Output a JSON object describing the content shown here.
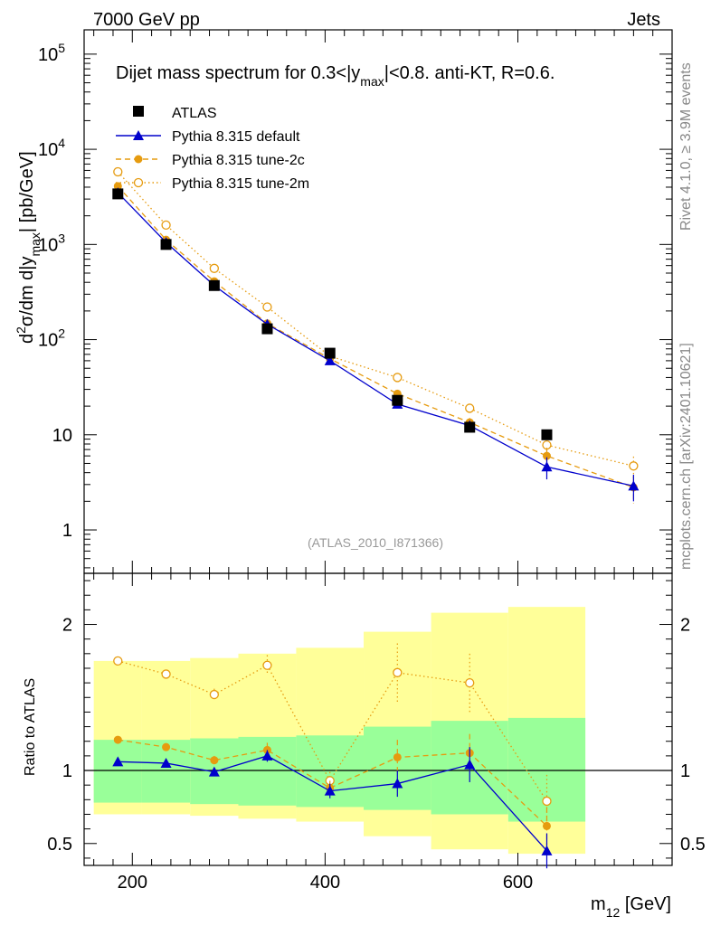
{
  "header": {
    "left": "7000 GeV pp",
    "right": "Jets"
  },
  "side_texts": {
    "rivet": "Rivet 4.1.0, ≥ 3.9M events",
    "mcplots": "mcplots.cern.ch [arXiv:2401.10621]"
  },
  "colors": {
    "atlas": "#000000",
    "default": "#0000cc",
    "tune2c": "#e69b0f",
    "tune2m": "#e69b0f",
    "band_inner": "#99ff99",
    "band_outer": "#ffff99"
  },
  "chart_data": [
    {
      "type": "scatter",
      "title": "Dijet mass spectrum for 0.3<|y_max|<0.8.  anti-KT, R=0.6.",
      "title_parts": {
        "main": "Dijet mass spectrum for 0.3<|y",
        "sub": "max",
        "rest": "|<0.8.  anti-KT, R=0.6."
      },
      "ylabel_parts": {
        "d": "d",
        "sup": "2",
        "mid": "σ/dm d|y",
        "sub": "max",
        "rest": "| [pb/GeV]"
      },
      "yscale": "log",
      "xlim": [
        150,
        760
      ],
      "ylim": [
        0.35,
        180000
      ],
      "ytick_labels": [
        "1",
        "10",
        "10",
        "10",
        "10",
        "10"
      ],
      "ytick_exponents": [
        "",
        "",
        "2",
        "3",
        "4",
        "5"
      ],
      "watermark": "(ATLAS_2010_I871366)",
      "legend_position": "top-left",
      "series": [
        {
          "name": "ATLAS",
          "marker": "square",
          "x": [
            185,
            235,
            285,
            340,
            405,
            475,
            550,
            630
          ],
          "y": [
            3400,
            1000,
            370,
            130,
            72,
            23,
            12,
            10
          ]
        },
        {
          "name": "Pythia 8.315 default",
          "marker": "triangle",
          "line": "solid",
          "x": [
            185,
            235,
            285,
            340,
            405,
            475,
            550,
            630,
            720
          ],
          "y": [
            3500,
            1050,
            370,
            145,
            60,
            21,
            12.5,
            4.6,
            2.9
          ],
          "err": [
            0,
            0,
            0,
            0,
            0,
            2,
            1,
            1.2,
            0.9
          ]
        },
        {
          "name": "Pythia 8.315 tune-2c",
          "marker": "circle",
          "line": "dashed",
          "x": [
            185,
            235,
            285,
            340,
            405,
            475,
            550,
            630,
            720
          ],
          "y": [
            4100,
            1120,
            410,
            148,
            63,
            27,
            13.5,
            6,
            2.8
          ],
          "err": [
            0,
            0,
            0,
            0,
            0,
            2.5,
            1.5,
            1.3,
            0.9
          ]
        },
        {
          "name": "Pythia 8.315 tune-2m",
          "marker": "open-circle",
          "line": "dotted",
          "x": [
            185,
            235,
            285,
            340,
            405,
            475,
            550,
            630,
            720
          ],
          "y": [
            5800,
            1600,
            560,
            220,
            67,
            40,
            19,
            7.8,
            4.7
          ],
          "err": [
            0,
            0,
            0,
            0,
            0,
            3,
            2,
            1.5,
            1.2
          ]
        }
      ]
    },
    {
      "type": "scatter",
      "ylabel": "Ratio to ATLAS",
      "xlabel_parts": {
        "main": "m",
        "sub": "12",
        "rest": " [GeV]"
      },
      "xlim": [
        150,
        760
      ],
      "ylim": [
        0.35,
        2.35
      ],
      "xtick_labels": [
        "200",
        "400",
        "600"
      ],
      "xtick_values": [
        200,
        400,
        600
      ],
      "ytick_labels": [
        "0.5",
        "1",
        "2"
      ],
      "ytick_values": [
        0.5,
        1,
        2
      ],
      "bands": [
        {
          "x0": 160,
          "x1": 210,
          "inner": [
            0.78,
            1.21
          ],
          "outer": [
            0.7,
            1.75
          ]
        },
        {
          "x0": 210,
          "x1": 260,
          "inner": [
            0.78,
            1.21
          ],
          "outer": [
            0.7,
            1.75
          ]
        },
        {
          "x0": 260,
          "x1": 310,
          "inner": [
            0.77,
            1.22
          ],
          "outer": [
            0.69,
            1.77
          ]
        },
        {
          "x0": 310,
          "x1": 370,
          "inner": [
            0.76,
            1.23
          ],
          "outer": [
            0.67,
            1.8
          ]
        },
        {
          "x0": 370,
          "x1": 440,
          "inner": [
            0.75,
            1.24
          ],
          "outer": [
            0.65,
            1.84
          ]
        },
        {
          "x0": 440,
          "x1": 510,
          "inner": [
            0.73,
            1.3
          ],
          "outer": [
            0.55,
            1.95
          ]
        },
        {
          "x0": 510,
          "x1": 590,
          "inner": [
            0.7,
            1.34
          ],
          "outer": [
            0.46,
            2.08
          ]
        },
        {
          "x0": 590,
          "x1": 670,
          "inner": [
            0.65,
            1.36
          ],
          "outer": [
            0.43,
            2.12
          ]
        }
      ],
      "reference": 1,
      "series": [
        {
          "name": "Pythia 8.315 default",
          "x": [
            185,
            235,
            285,
            340,
            405,
            475,
            550,
            630
          ],
          "y": [
            1.06,
            1.05,
            0.99,
            1.1,
            0.86,
            0.91,
            1.04,
            0.45
          ],
          "err": [
            0,
            0,
            0.02,
            0.04,
            0.05,
            0.09,
            0.12,
            0.12
          ]
        },
        {
          "name": "Pythia 8.315 tune-2c",
          "x": [
            185,
            235,
            285,
            340,
            405,
            475,
            550,
            630
          ],
          "y": [
            1.21,
            1.16,
            1.07,
            1.14,
            0.88,
            1.09,
            1.12,
            0.62
          ],
          "err": [
            0,
            0,
            0.03,
            0.05,
            0.05,
            0.12,
            0.13,
            0.13
          ]
        },
        {
          "name": "Pythia 8.315 tune-2m",
          "x": [
            185,
            235,
            285,
            340,
            405,
            475,
            550,
            630
          ],
          "y": [
            1.75,
            1.66,
            1.52,
            1.72,
            0.93,
            1.67,
            1.6,
            0.79
          ],
          "err": [
            0,
            0,
            0.04,
            0.07,
            0.06,
            0.2,
            0.2,
            0.18
          ]
        }
      ]
    }
  ]
}
